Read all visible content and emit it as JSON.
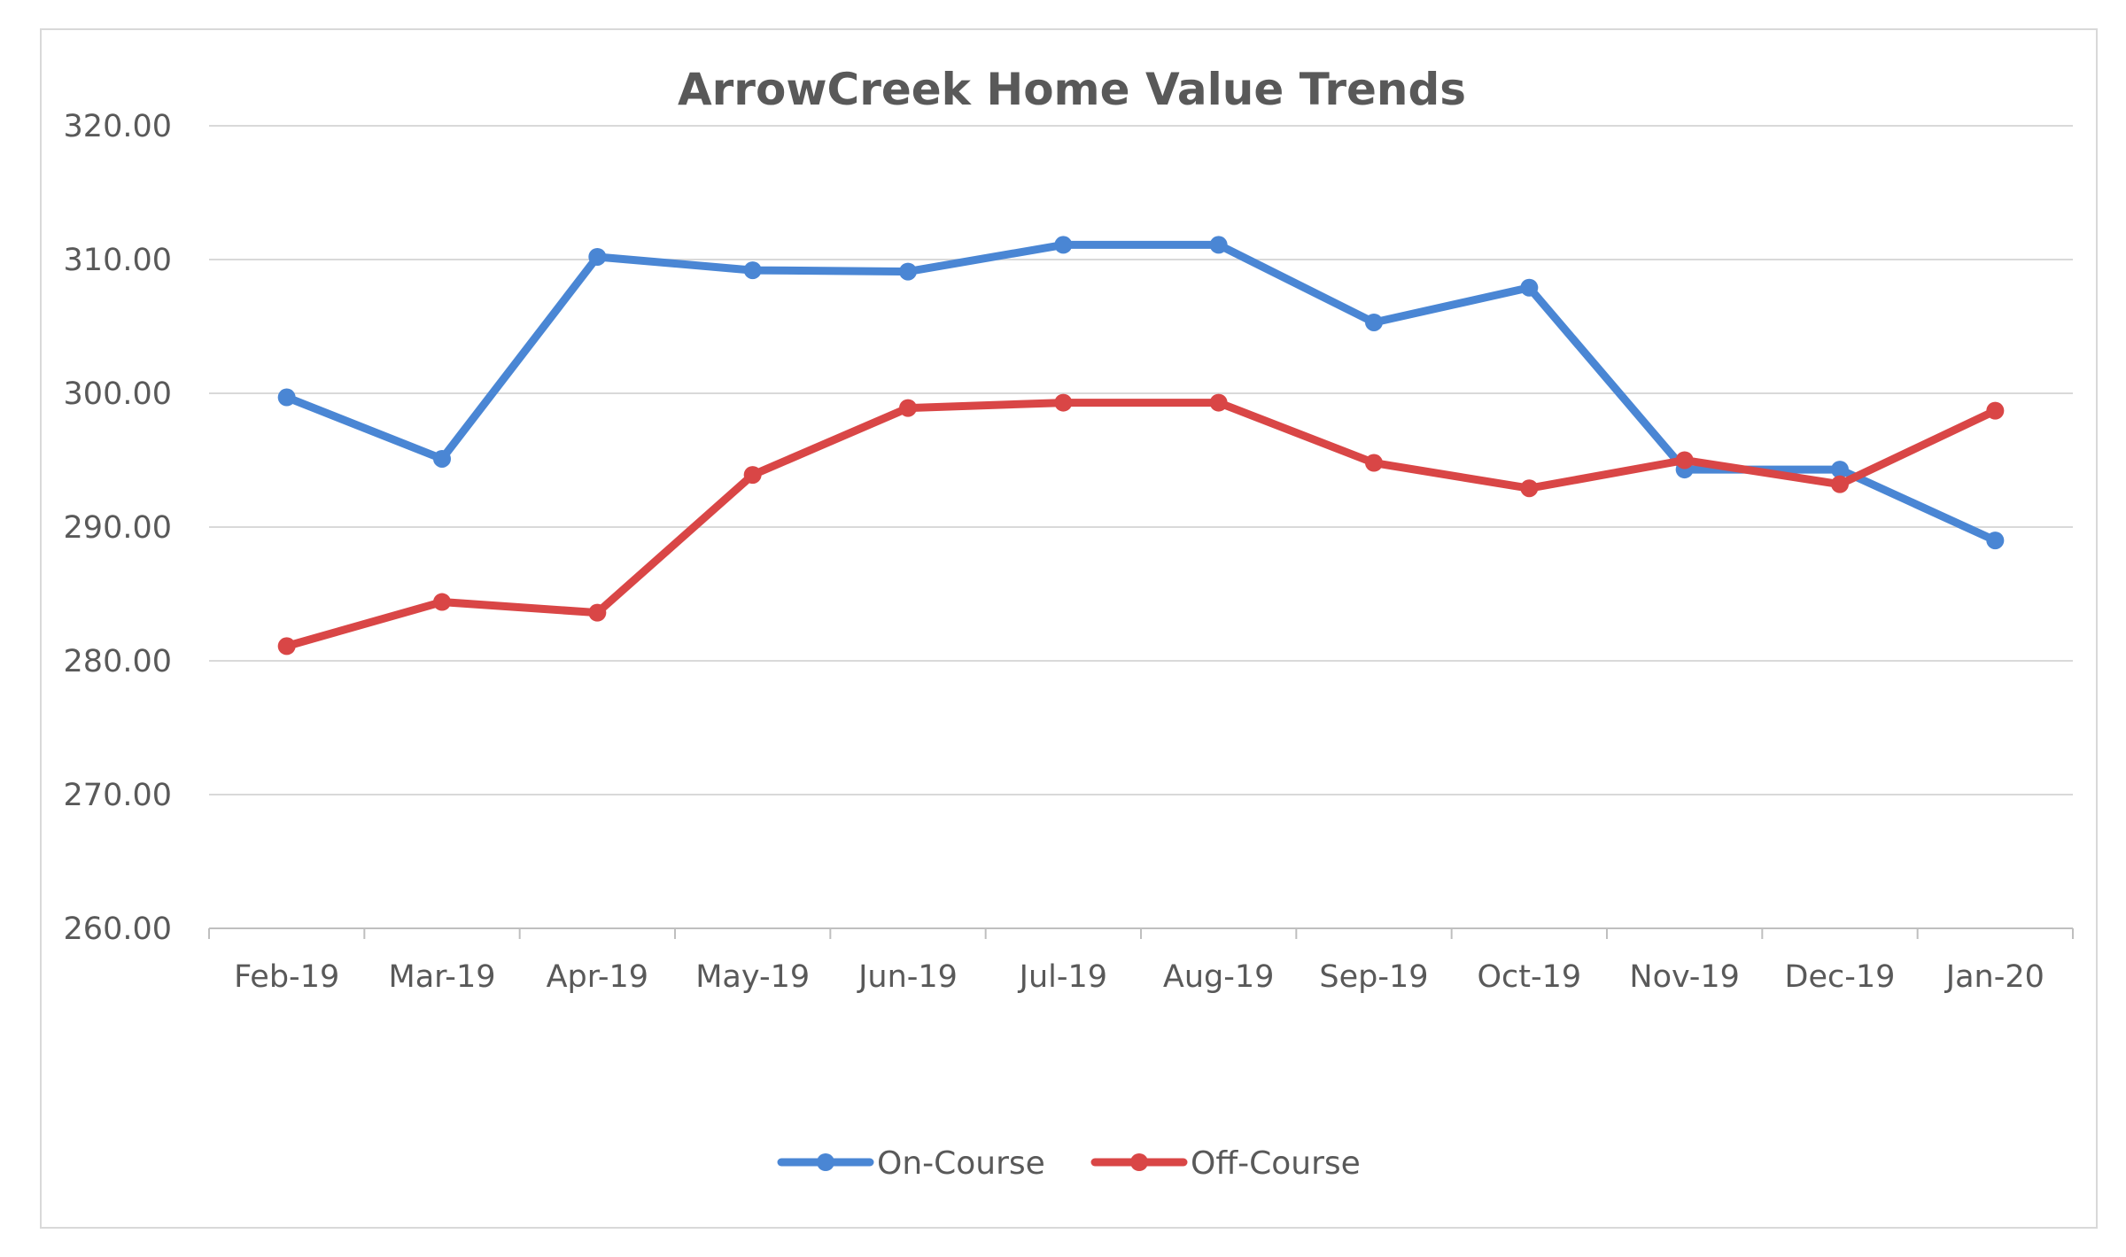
{
  "chart_data": {
    "type": "line",
    "title": "ArrowCreek Home Value Trends",
    "xlabel": "",
    "ylabel": "",
    "categories": [
      "Feb-19",
      "Mar-19",
      "Apr-19",
      "May-19",
      "Jun-19",
      "Jul-19",
      "Aug-19",
      "Sep-19",
      "Oct-19",
      "Nov-19",
      "Dec-19",
      "Jan-20"
    ],
    "series": [
      {
        "name": "On-Course",
        "color": "#4a86d4",
        "values": [
          299.7,
          295.1,
          310.2,
          309.2,
          309.1,
          311.1,
          311.1,
          305.3,
          307.9,
          294.3,
          294.3,
          289.0
        ]
      },
      {
        "name": "Off-Course",
        "color": "#d94646",
        "values": [
          281.1,
          284.4,
          283.6,
          293.9,
          298.9,
          299.3,
          299.3,
          294.8,
          292.9,
          295.0,
          293.2,
          298.7
        ]
      }
    ],
    "ylim": [
      260,
      320
    ],
    "yticks": [
      "260.00",
      "270.00",
      "280.00",
      "290.00",
      "300.00",
      "310.00",
      "320.00"
    ],
    "grid": true,
    "legend_position": "bottom"
  }
}
